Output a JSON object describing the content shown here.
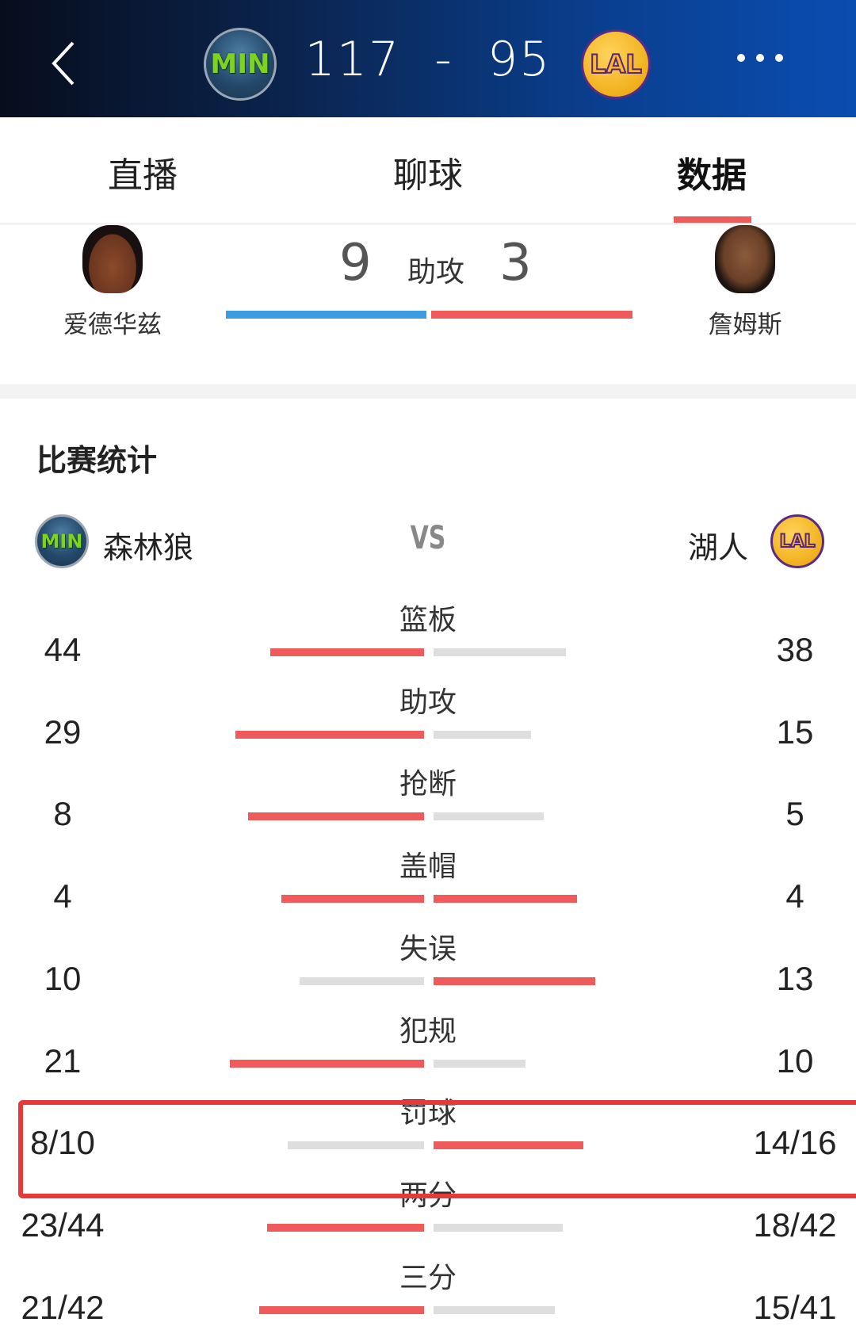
{
  "header": {
    "home_abbr": "MIN",
    "away_abbr": "LAL",
    "home_score": "117",
    "separator": "-",
    "away_score": "95",
    "back_icon": "chevron-left-icon",
    "more_icon": "more-dots-icon"
  },
  "tabs": [
    {
      "label": "直播",
      "active": false
    },
    {
      "label": "聊球",
      "active": false
    },
    {
      "label": "数据",
      "active": true
    }
  ],
  "leader": {
    "stat_label": "助攻",
    "home_player": "爱德华兹",
    "home_value": "9",
    "away_player": "詹姆斯",
    "away_value": "3",
    "home_color": "#3d9be0",
    "away_color": "#ef5b5b"
  },
  "section_title": "比赛统计",
  "teams": {
    "home": "森林狼",
    "vs": "VS",
    "away": "湖人"
  },
  "colors": {
    "highlight": "#ef5b5b",
    "muted": "#dedede",
    "box": "#e53a3a"
  },
  "stats": [
    {
      "label": "篮板",
      "home": "44",
      "away": "38",
      "hv": 44,
      "av": 38
    },
    {
      "label": "助攻",
      "home": "29",
      "away": "15",
      "hv": 29,
      "av": 15
    },
    {
      "label": "抢断",
      "home": "8",
      "away": "5",
      "hv": 8,
      "av": 5
    },
    {
      "label": "盖帽",
      "home": "4",
      "away": "4",
      "hv": 4,
      "av": 4
    },
    {
      "label": "失误",
      "home": "10",
      "away": "13",
      "hv": 10,
      "av": 13
    },
    {
      "label": "犯规",
      "home": "21",
      "away": "10",
      "hv": 21,
      "av": 10
    },
    {
      "label": "罚球",
      "home": "8/10",
      "away": "14/16",
      "hv": 0.8,
      "av": 0.875
    },
    {
      "label": "两分",
      "home": "23/44",
      "away": "18/42",
      "hv": 0.523,
      "av": 0.429
    },
    {
      "label": "三分",
      "home": "21/42",
      "away": "15/41",
      "hv": 0.5,
      "av": 0.366
    }
  ]
}
